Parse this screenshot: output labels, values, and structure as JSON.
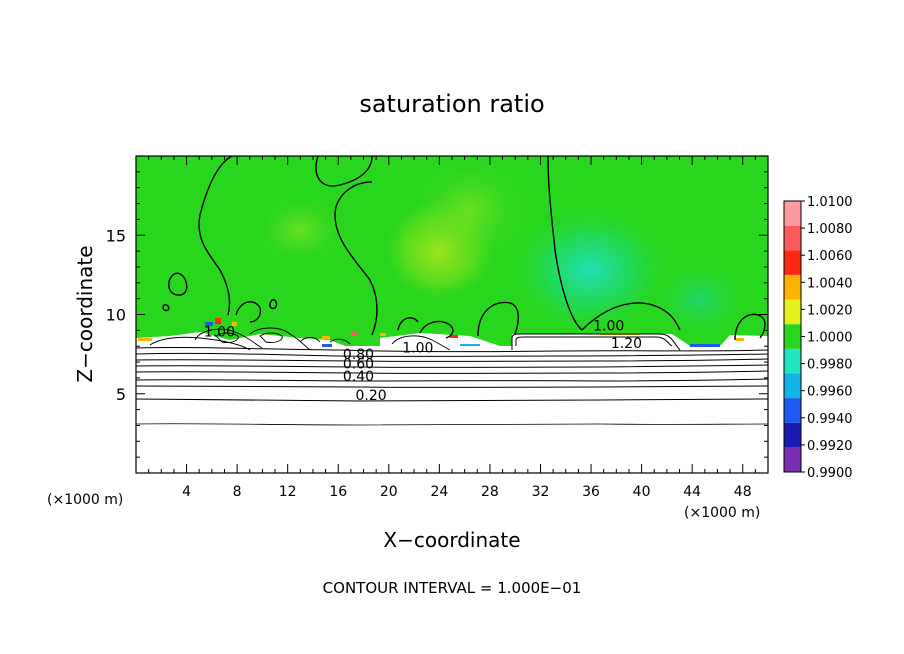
{
  "chart_data": {
    "type": "heatmap",
    "title": "saturation ratio",
    "xlabel": "X−coordinate",
    "ylabel": "Z−coordinate",
    "x_unit_left": "(×1000 m)",
    "x_unit_right": "(×1000 m)",
    "xlim": [
      0,
      50
    ],
    "ylim": [
      0,
      20
    ],
    "x_ticks": [
      4,
      8,
      12,
      16,
      20,
      24,
      28,
      32,
      36,
      40,
      44,
      48
    ],
    "x_tick_labels": [
      "4",
      "8",
      "12",
      "16",
      "20",
      "24",
      "28",
      "32",
      "36",
      "40",
      "44",
      "48"
    ],
    "y_ticks": [
      5,
      10,
      15
    ],
    "y_tick_labels": [
      "5",
      "10",
      "15"
    ],
    "footer": "CONTOUR INTERVAL = 1.000E−01",
    "colorbar": {
      "levels": [
        0.99,
        0.992,
        0.994,
        0.996,
        0.998,
        1.0,
        1.002,
        1.004,
        1.006,
        1.008,
        1.01
      ],
      "labels": [
        "0.9900",
        "0.9920",
        "0.9940",
        "0.9960",
        "0.9980",
        "1.0000",
        "1.0020",
        "1.0040",
        "1.0060",
        "1.0080",
        "1.0100"
      ],
      "colors": [
        "#7a2fb0",
        "#1a1ab0",
        "#1e5af0",
        "#12b4e8",
        "#1ee6be",
        "#28d61e",
        "#e6f01e",
        "#ffb400",
        "#ff2810",
        "#ff5a5a",
        "#ff9aa0"
      ]
    },
    "contour_labels": [
      {
        "text": "0.20",
        "x": 18.6,
        "y": 4.6
      },
      {
        "text": "0.40",
        "x": 17.6,
        "y": 5.8
      },
      {
        "text": "0.60",
        "x": 17.6,
        "y": 6.6
      },
      {
        "text": "0.80",
        "x": 17.6,
        "y": 7.2
      },
      {
        "text": "1.00",
        "x": 22.3,
        "y": 7.6
      },
      {
        "text": "1.00",
        "x": 37.4,
        "y": 9.0
      },
      {
        "text": "1.20",
        "x": 38.8,
        "y": 7.9
      },
      {
        "text": "1.00",
        "x": 6.6,
        "y": 8.6
      }
    ]
  }
}
